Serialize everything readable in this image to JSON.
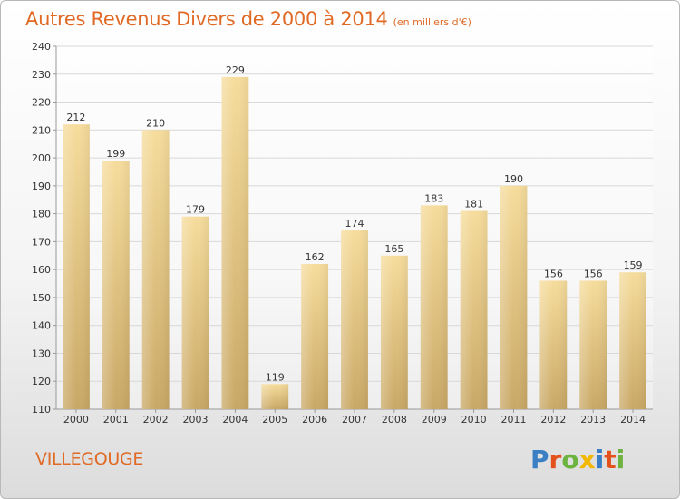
{
  "title": "Autres Revenus Divers de 2000 à 2014",
  "unit": "(en milliers d'€)",
  "place": "VILLEGOUGE",
  "logo": {
    "letters": [
      "P",
      "r",
      "o",
      "x",
      "i",
      "t",
      "i"
    ],
    "colors": [
      "#3a7fc4",
      "#e5511c",
      "#6db33f",
      "#f2b800",
      "#3a7fc4",
      "#e5511c",
      "#6db33f"
    ]
  },
  "colors": {
    "title": "#e06a25",
    "bar_light": "#f6dc9c",
    "bar_dark": "#c9a866",
    "grid": "#d8d8d8"
  },
  "chart_data": {
    "type": "bar",
    "categories": [
      "2000",
      "2001",
      "2002",
      "2003",
      "2004",
      "2005",
      "2006",
      "2007",
      "2008",
      "2009",
      "2010",
      "2011",
      "2012",
      "2013",
      "2014"
    ],
    "values": [
      212,
      199,
      210,
      179,
      229,
      119,
      162,
      174,
      165,
      183,
      181,
      190,
      156,
      156,
      159
    ],
    "ylim": [
      110,
      240
    ],
    "yticks": [
      110,
      120,
      130,
      140,
      150,
      160,
      170,
      180,
      190,
      200,
      210,
      220,
      230,
      240
    ],
    "grid": true,
    "data_labels": true
  }
}
